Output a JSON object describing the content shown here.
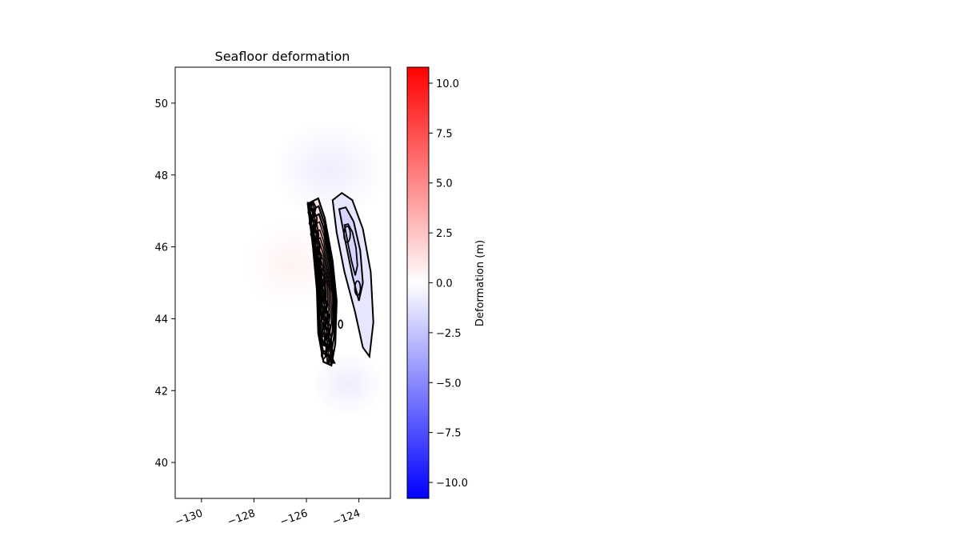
{
  "chart_data": {
    "type": "heatmap",
    "title": "Seafloor deformation",
    "xlabel": "",
    "ylabel": "",
    "xlim": [
      -131,
      -122.8
    ],
    "ylim": [
      39,
      51
    ],
    "x_ticks": [
      -130,
      -128,
      -126,
      -124
    ],
    "x_tick_labels": [
      "−130",
      "−128",
      "−126",
      "−124"
    ],
    "y_ticks": [
      40,
      42,
      44,
      46,
      48,
      50
    ],
    "y_tick_labels": [
      "40",
      "42",
      "44",
      "46",
      "48",
      "50"
    ],
    "grid": false,
    "colormap": "bwr",
    "colorbar": {
      "label": "Deformation (m)",
      "range": [
        -10.8,
        10.8
      ],
      "ticks": [
        -10,
        -7.5,
        -5,
        -2.5,
        0,
        2.5,
        5,
        7.5,
        10
      ],
      "tick_labels": [
        "−10.0",
        "−7.5",
        "−5.0",
        "−2.5",
        "0.0",
        "2.5",
        "5.0",
        "7.5",
        "10.0"
      ],
      "colors": [
        "#0000ff",
        "#ffffff",
        "#ff0000"
      ]
    },
    "contour_color": "#000000",
    "uplift_zone": {
      "description_points_lon_lat": [
        [
          -125.95,
          47.2
        ],
        [
          -125.55,
          47.35
        ],
        [
          -125.3,
          46.8
        ],
        [
          -125.0,
          45.6
        ],
        [
          -124.85,
          44.5
        ],
        [
          -124.9,
          43.3
        ],
        [
          -125.05,
          42.7
        ],
        [
          -125.35,
          42.8
        ],
        [
          -125.55,
          43.6
        ],
        [
          -125.6,
          44.8
        ],
        [
          -125.75,
          46.0
        ],
        [
          -125.95,
          47.2
        ]
      ],
      "peak_value": 3.5
    },
    "subsidence_zone": {
      "outer_contour_lon_lat": [
        [
          -125.0,
          47.3
        ],
        [
          -124.65,
          47.5
        ],
        [
          -124.25,
          47.3
        ],
        [
          -123.85,
          46.5
        ],
        [
          -123.55,
          45.3
        ],
        [
          -123.45,
          43.9
        ],
        [
          -123.6,
          42.95
        ],
        [
          -123.85,
          43.2
        ],
        [
          -124.15,
          44.2
        ],
        [
          -124.55,
          45.3
        ],
        [
          -124.85,
          46.4
        ],
        [
          -125.0,
          47.3
        ]
      ],
      "inner_contour_lon_lat": [
        [
          -124.75,
          47.05
        ],
        [
          -124.5,
          47.1
        ],
        [
          -124.2,
          46.7
        ],
        [
          -123.95,
          45.9
        ],
        [
          -123.85,
          45.0
        ],
        [
          -124.0,
          44.5
        ],
        [
          -124.25,
          45.2
        ],
        [
          -124.5,
          46.1
        ],
        [
          -124.75,
          47.05
        ]
      ],
      "peak_value": -1.8
    }
  }
}
